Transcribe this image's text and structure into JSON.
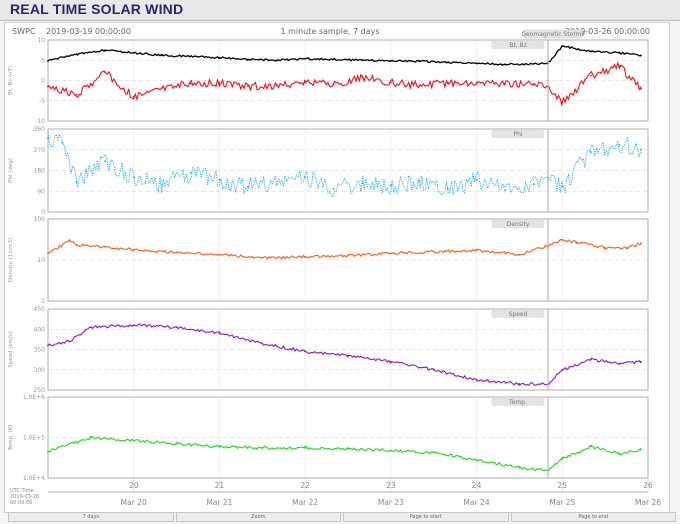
{
  "page": {
    "title": "REAL TIME SOLAR WIND"
  },
  "header": {
    "source": "SWPC",
    "start": "2019-03-19 00:00:00",
    "sampling": "1 minute sample, 7 days",
    "end": "2019-03-26 00:00:00",
    "badge": "Geomagnetic Storms"
  },
  "footer": {
    "lines": [
      "UTC Time",
      "2019-03-26",
      "00:00:00"
    ]
  },
  "controls": [
    {
      "label": "7 days"
    },
    {
      "label": "Zoom"
    },
    {
      "label": "Page to start"
    },
    {
      "label": "Page to end"
    }
  ],
  "colors": {
    "bz": "#e8121e",
    "bt": "#000000",
    "phi": "#1aa6df",
    "density": "#f2601a",
    "speed": "#8a17c8",
    "temp": "#22d61f",
    "grid": "#cfcfcf",
    "text": "#777777"
  },
  "chart_data": [
    {
      "type": "line",
      "panel": "magnetic-field",
      "badge": "Bt, Bz",
      "ylabel": "Bt, Bz (nT)",
      "ylim": [
        -10,
        10
      ],
      "yticks": [
        "10",
        "5",
        "0",
        "-5",
        "-10"
      ],
      "x": [
        "2019-03-19 00:00",
        "2019-03-19 08:00",
        "2019-03-19 16:00",
        "2019-03-20 00:00",
        "2019-03-20 08:00",
        "2019-03-20 16:00",
        "2019-03-21 00:00",
        "2019-03-21 08:00",
        "2019-03-21 16:00",
        "2019-03-22 00:00",
        "2019-03-22 08:00",
        "2019-03-22 16:00",
        "2019-03-23 00:00",
        "2019-03-23 08:00",
        "2019-03-23 16:00",
        "2019-03-24 00:00",
        "2019-03-24 08:00",
        "2019-03-24 16:00",
        "2019-03-24 20:00",
        "2019-03-25 00:00",
        "2019-03-25 08:00",
        "2019-03-25 16:00",
        "2019-03-25 22:00"
      ],
      "series": [
        {
          "name": "Bt",
          "values": [
            4.8,
            6.5,
            7.5,
            6.8,
            6.2,
            6.0,
            5.6,
            5.2,
            5.0,
            5.4,
            5.2,
            5.0,
            4.9,
            4.7,
            4.5,
            4.2,
            4.0,
            4.1,
            4.3,
            8.5,
            7.2,
            6.8,
            6.2
          ]
        },
        {
          "name": "Bz",
          "values": [
            -1.5,
            -3.5,
            2.0,
            -4.0,
            -1.8,
            -0.8,
            -0.6,
            -1.4,
            -1.2,
            -0.5,
            -1.0,
            0.8,
            -0.5,
            -1.2,
            -0.6,
            -0.5,
            -0.8,
            -1.0,
            -1.5,
            -5.5,
            1.2,
            3.5,
            -2.0
          ]
        }
      ]
    },
    {
      "type": "scatter",
      "panel": "phi",
      "badge": "Phi",
      "ylabel": "Phi (deg)",
      "ylim": [
        0,
        360
      ],
      "yticks": [
        "360",
        "270",
        "180",
        "90",
        "0"
      ],
      "x": [
        "2019-03-19 00:00",
        "2019-03-19 04:00",
        "2019-03-19 08:00",
        "2019-03-19 16:00",
        "2019-03-20 00:00",
        "2019-03-20 08:00",
        "2019-03-20 16:00",
        "2019-03-21 00:00",
        "2019-03-21 08:00",
        "2019-03-21 16:00",
        "2019-03-22 00:00",
        "2019-03-22 08:00",
        "2019-03-22 16:00",
        "2019-03-23 00:00",
        "2019-03-23 08:00",
        "2019-03-23 16:00",
        "2019-03-24 00:00",
        "2019-03-24 08:00",
        "2019-03-24 16:00",
        "2019-03-24 20:00",
        "2019-03-25 00:00",
        "2019-03-25 08:00",
        "2019-03-25 16:00",
        "2019-03-25 22:00"
      ],
      "series": [
        {
          "name": "Phi",
          "values": [
            320,
            300,
            130,
            220,
            150,
            120,
            170,
            140,
            110,
            120,
            150,
            100,
            125,
            115,
            135,
            100,
            140,
            95,
            120,
            140,
            110,
            260,
            290,
            270
          ]
        }
      ]
    },
    {
      "type": "line",
      "panel": "density",
      "badge": "Density",
      "ylabel": "Density (1/cm3)",
      "ylim": [
        0.1,
        100
      ],
      "yscale": "log",
      "yticks": [
        "100",
        "10",
        "1"
      ],
      "x": [
        "2019-03-19 00:00",
        "2019-03-19 06:00",
        "2019-03-19 08:00",
        "2019-03-19 16:00",
        "2019-03-20 00:00",
        "2019-03-20 12:00",
        "2019-03-21 00:00",
        "2019-03-21 12:00",
        "2019-03-22 00:00",
        "2019-03-22 12:00",
        "2019-03-23 00:00",
        "2019-03-23 12:00",
        "2019-03-24 00:00",
        "2019-03-24 12:00",
        "2019-03-24 20:00",
        "2019-03-25 00:00",
        "2019-03-25 04:00",
        "2019-03-25 12:00",
        "2019-03-25 18:00",
        "2019-03-25 22:00"
      ],
      "series": [
        {
          "name": "Density",
          "values": [
            5.5,
            16.0,
            11.0,
            9.5,
            7.5,
            6.0,
            5.0,
            3.8,
            4.2,
            4.6,
            5.5,
            6.4,
            7.2,
            5.0,
            10.5,
            17.0,
            14.0,
            9.0,
            8.5,
            13.0
          ]
        }
      ]
    },
    {
      "type": "line",
      "panel": "speed",
      "badge": "Speed",
      "ylabel": "Speed (km/s)",
      "ylim": [
        250,
        450
      ],
      "yticks": [
        "450",
        "400",
        "350",
        "300",
        "250"
      ],
      "x": [
        "2019-03-19 00:00",
        "2019-03-19 06:00",
        "2019-03-19 12:00",
        "2019-03-20 00:00",
        "2019-03-20 12:00",
        "2019-03-21 00:00",
        "2019-03-21 12:00",
        "2019-03-22 00:00",
        "2019-03-22 12:00",
        "2019-03-23 00:00",
        "2019-03-23 12:00",
        "2019-03-24 00:00",
        "2019-03-24 12:00",
        "2019-03-24 20:00",
        "2019-03-25 00:00",
        "2019-03-25 08:00",
        "2019-03-25 16:00",
        "2019-03-25 22:00"
      ],
      "series": [
        {
          "name": "Speed",
          "values": [
            360,
            370,
            405,
            410,
            405,
            390,
            365,
            345,
            335,
            320,
            300,
            275,
            265,
            265,
            300,
            325,
            315,
            320
          ]
        }
      ]
    },
    {
      "type": "line",
      "panel": "temperature",
      "badge": "Temp.",
      "ylabel": "Temp. (K)",
      "ylim": [
        10000,
        1000000
      ],
      "yscale": "log",
      "yticks": [
        "1.0E+6",
        "1.0E+5",
        "1.0E+4"
      ],
      "x": [
        "2019-03-19 00:00",
        "2019-03-19 12:00",
        "2019-03-20 00:00",
        "2019-03-20 12:00",
        "2019-03-21 00:00",
        "2019-03-21 12:00",
        "2019-03-22 00:00",
        "2019-03-22 12:00",
        "2019-03-23 00:00",
        "2019-03-23 12:00",
        "2019-03-24 00:00",
        "2019-03-24 12:00",
        "2019-03-24 20:00",
        "2019-03-25 00:00",
        "2019-03-25 08:00",
        "2019-03-25 16:00",
        "2019-03-25 22:00"
      ],
      "series": [
        {
          "name": "Temp.",
          "values": [
            45000,
            100000,
            85000,
            70000,
            60000,
            55000,
            55000,
            52000,
            48000,
            42000,
            28000,
            18000,
            15000,
            30000,
            60000,
            40000,
            50000
          ]
        }
      ]
    }
  ],
  "xaxis": {
    "range": [
      "2019-03-19 00:00",
      "2019-03-26 00:00"
    ],
    "ticks": [
      {
        "date": "2019-03-20 00:00",
        "day": "20",
        "label": "Mar 20"
      },
      {
        "date": "2019-03-21 00:00",
        "day": "21",
        "label": "Mar 21"
      },
      {
        "date": "2019-03-22 00:00",
        "day": "22",
        "label": "Mar 22"
      },
      {
        "date": "2019-03-23 00:00",
        "day": "23",
        "label": "Mar 23"
      },
      {
        "date": "2019-03-24 00:00",
        "day": "24",
        "label": "Mar 24"
      },
      {
        "date": "2019-03-25 00:00",
        "day": "25",
        "label": "Mar 25"
      },
      {
        "date": "2019-03-26 00:00",
        "day": "26",
        "label": "Mar 26"
      }
    ],
    "marker": "2019-03-24 20:00"
  }
}
